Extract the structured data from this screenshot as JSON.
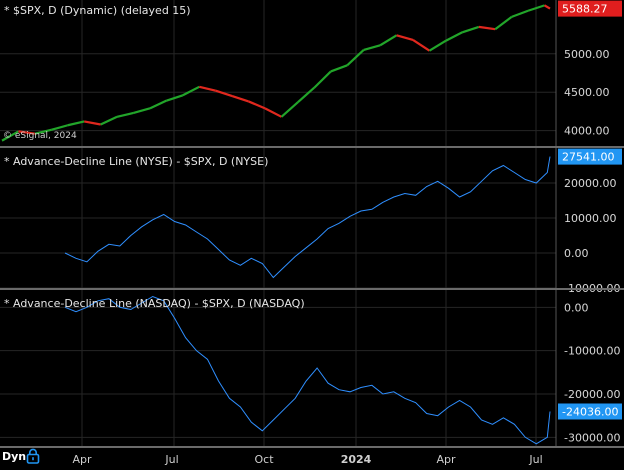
{
  "panels": [
    {
      "id": "spx",
      "title": "* $SPX, D (Dynamic) (delayed 15)",
      "ylim": [
        3800,
        5700
      ],
      "ticks": [
        "4000.00",
        "4500.00",
        "5000.00"
      ],
      "tick_values": [
        4000,
        4500,
        5000
      ],
      "last_value": "5588.27",
      "last_color": "#e01e1e",
      "up_color": "#22a52a",
      "down_color": "#e0281e"
    },
    {
      "id": "nyse",
      "title": "* Advance-Decline Line (NYSE) - $SPX, D (NYSE)",
      "ylim": [
        -10000,
        30000
      ],
      "ticks": [
        "20000.00",
        "10000.00",
        "0.00",
        "-10000.00"
      ],
      "tick_values": [
        20000,
        10000,
        0,
        -10000
      ],
      "last_value": "27541.00",
      "last_color": "#2196f3",
      "line_color": "#2f8fff"
    },
    {
      "id": "nasdaq",
      "title": "* Advance-Decline Line (NASDAQ) - $SPX, D (NASDAQ)",
      "ylim": [
        -32000,
        4000
      ],
      "ticks": [
        "0.00",
        "-10000.00",
        "-20000.00",
        "-30000.00"
      ],
      "tick_values": [
        0,
        -10000,
        -20000,
        -30000
      ],
      "last_value": "-24036.00",
      "last_color": "#2196f3",
      "line_color": "#2f8fff"
    }
  ],
  "copyright": "© eSignal, 2024",
  "footer": {
    "dyn_label": "Dyn",
    "lock_icon": "lock-icon",
    "lock_color": "#2196f3"
  },
  "x_axis": {
    "labels": [
      {
        "text": "Apr",
        "bold": false
      },
      {
        "text": "Jul",
        "bold": false
      },
      {
        "text": "Oct",
        "bold": false
      },
      {
        "text": "2024",
        "bold": true
      },
      {
        "text": "Apr",
        "bold": false
      },
      {
        "text": "Jul",
        "bold": false
      }
    ]
  },
  "chart_data": [
    {
      "type": "line",
      "name": "$SPX",
      "series": [
        {
          "name": "$SPX",
          "x": [
            0,
            12,
            24,
            36,
            48,
            60,
            72,
            84,
            96,
            108,
            120,
            132,
            144,
            156,
            168,
            180,
            192,
            204,
            216,
            228,
            240,
            252,
            264,
            276,
            288,
            300,
            312,
            324,
            336,
            348,
            360,
            372,
            384,
            396,
            400
          ],
          "values": [
            3870,
            3990,
            3960,
            4010,
            4070,
            4120,
            4080,
            4180,
            4230,
            4290,
            4390,
            4460,
            4570,
            4520,
            4450,
            4380,
            4290,
            4180,
            4370,
            4560,
            4770,
            4850,
            5050,
            5110,
            5240,
            5180,
            5040,
            5170,
            5280,
            5350,
            5320,
            5480,
            5560,
            5630,
            5588
          ]
        }
      ],
      "ylim": [
        3800,
        5700
      ]
    },
    {
      "type": "line",
      "name": "Advance-Decline Line (NYSE)",
      "series": [
        {
          "name": "Advance-Decline Line (NYSE)",
          "x": [
            46,
            54,
            62,
            70,
            78,
            86,
            94,
            102,
            110,
            118,
            126,
            134,
            142,
            150,
            158,
            166,
            174,
            182,
            190,
            198,
            206,
            214,
            222,
            230,
            238,
            246,
            254,
            262,
            270,
            278,
            286,
            294,
            302,
            310,
            318,
            326,
            334,
            342,
            350,
            358,
            366,
            374,
            382,
            390,
            398,
            400
          ],
          "values": [
            0,
            -1500,
            -2500,
            500,
            2500,
            2000,
            5000,
            7500,
            9500,
            11000,
            9000,
            8000,
            6000,
            4000,
            1000,
            -2000,
            -3500,
            -1500,
            -3000,
            -7000,
            -4000,
            -1000,
            1500,
            4000,
            7000,
            8500,
            10500,
            12000,
            12500,
            14500,
            16000,
            17000,
            16500,
            19000,
            20500,
            18500,
            16000,
            17500,
            20500,
            23500,
            25000,
            23000,
            21000,
            20000,
            23000,
            27541
          ]
        }
      ],
      "ylim": [
        -10000,
        30000
      ]
    },
    {
      "type": "line",
      "name": "Advance-Decline Line (NASDAQ)",
      "series": [
        {
          "name": "Advance-Decline Line (NASDAQ)",
          "x": [
            46,
            54,
            62,
            70,
            78,
            86,
            94,
            102,
            110,
            118,
            126,
            134,
            142,
            150,
            158,
            166,
            174,
            182,
            190,
            198,
            206,
            214,
            222,
            230,
            238,
            246,
            254,
            262,
            270,
            278,
            286,
            294,
            302,
            310,
            318,
            326,
            334,
            342,
            350,
            358,
            366,
            374,
            382,
            390,
            398,
            400
          ],
          "values": [
            0,
            -1000,
            0,
            1500,
            2000,
            0,
            -500,
            1000,
            2500,
            1500,
            -2500,
            -7000,
            -10000,
            -12000,
            -17000,
            -21000,
            -23000,
            -26500,
            -28500,
            -26000,
            -23500,
            -21000,
            -17000,
            -14000,
            -17500,
            -19000,
            -19500,
            -18500,
            -18000,
            -20000,
            -19500,
            -21000,
            -22000,
            -24500,
            -25000,
            -23000,
            -21500,
            -23000,
            -26000,
            -27000,
            -25500,
            -27000,
            -30000,
            -31500,
            -30000,
            -24036
          ]
        }
      ],
      "ylim": [
        -32000,
        4000
      ]
    }
  ]
}
